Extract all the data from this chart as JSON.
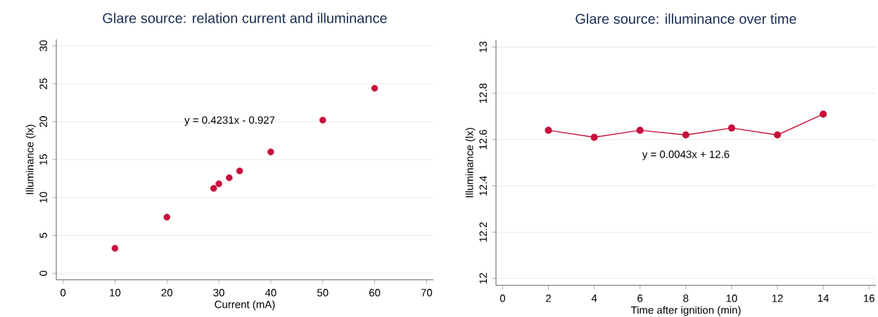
{
  "chart_data": [
    {
      "type": "scatter",
      "title": "Glare source: relation current and illuminance",
      "xlabel": "Current (mA)",
      "ylabel": "Illuminance (lx)",
      "annotations": [
        "y = 0.4231x - 0.927"
      ],
      "x": [
        10,
        20,
        29,
        30,
        32,
        34,
        40,
        50,
        60
      ],
      "series": [
        {
          "color": "#c8103a",
          "values": [
            3.3,
            7.4,
            11.2,
            11.8,
            12.6,
            13.5,
            16.0,
            20.2,
            24.4
          ]
        }
      ],
      "xlim": [
        -1.3,
        71.3
      ],
      "ylim": [
        -0.85,
        30.85
      ],
      "xticks": [
        0,
        10,
        20,
        30,
        40,
        50,
        60,
        70
      ],
      "yticks": [
        0,
        5,
        10,
        15,
        20,
        25,
        30
      ],
      "grid": "y",
      "marker": "circle"
    },
    {
      "type": "line",
      "title": "Glare source: illuminance over time",
      "xlabel": "Time after ignition (min)",
      "ylabel": "Illuminance (lx)",
      "annotations": [
        "y = 0.0043x + 12.6"
      ],
      "x": [
        2,
        4,
        6,
        8,
        10,
        12,
        14
      ],
      "series": [
        {
          "color": "#c8103a",
          "values": [
            12.64,
            12.61,
            12.64,
            12.62,
            12.65,
            12.62,
            12.71
          ]
        }
      ],
      "xlim": [
        -0.29,
        16.3
      ],
      "ylim": [
        11.97,
        13.03
      ],
      "xticks": [
        0,
        2,
        4,
        6,
        8,
        10,
        12,
        14,
        16
      ],
      "yticks": [
        12,
        12.2,
        12.4,
        12.6,
        12.8,
        13
      ],
      "grid": "y",
      "marker": "circle",
      "line_style": "solid"
    }
  ]
}
